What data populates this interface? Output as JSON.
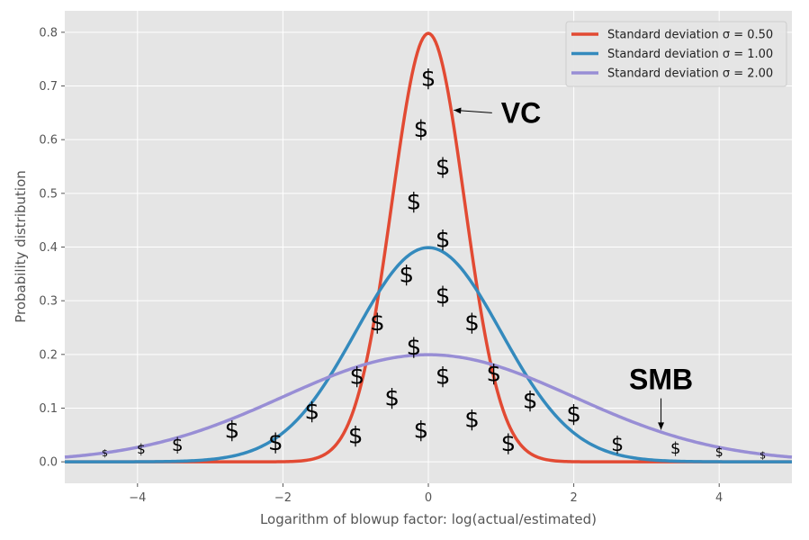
{
  "chart_data": {
    "type": "line",
    "xlabel": "Logarithm of blowup factor: log(actual/estimated)",
    "ylabel": "Probability distribution",
    "xlim": [
      -5,
      5
    ],
    "ylim": [
      -0.04,
      0.84
    ],
    "x_ticks": [
      -4,
      -2,
      0,
      2,
      4
    ],
    "x_tick_labels": [
      "−4",
      "−2",
      "0",
      "2",
      "4"
    ],
    "y_ticks": [
      0.0,
      0.1,
      0.2,
      0.3,
      0.4,
      0.5,
      0.6,
      0.7,
      0.8
    ],
    "y_tick_labels": [
      "0.0",
      "0.1",
      "0.2",
      "0.3",
      "0.4",
      "0.5",
      "0.6",
      "0.7",
      "0.8"
    ],
    "grid": true,
    "background": "#e5e5e5",
    "legend_position": "top-right",
    "series": [
      {
        "name": "Standard deviation σ = 0.50",
        "mean": 0,
        "sigma": 0.5,
        "color": "#e24a33"
      },
      {
        "name": "Standard deviation σ = 1.00",
        "mean": 0,
        "sigma": 1.0,
        "color": "#348abd"
      },
      {
        "name": "Standard deviation σ = 2.00",
        "mean": 0,
        "sigma": 2.0,
        "color": "#988ed5"
      }
    ],
    "dollar_symbol": "$",
    "dollar_markers": [
      {
        "x": -4.45,
        "y": 0.01,
        "size": 11
      },
      {
        "x": -3.95,
        "y": 0.015,
        "size": 15
      },
      {
        "x": -3.45,
        "y": 0.02,
        "size": 20
      },
      {
        "x": -2.7,
        "y": 0.045,
        "size": 26
      },
      {
        "x": -2.1,
        "y": 0.022,
        "size": 26
      },
      {
        "x": -1.6,
        "y": 0.08,
        "size": 26
      },
      {
        "x": -1.0,
        "y": 0.035,
        "size": 26
      },
      {
        "x": -0.98,
        "y": 0.145,
        "size": 26
      },
      {
        "x": -0.7,
        "y": 0.245,
        "size": 26
      },
      {
        "x": -0.5,
        "y": 0.105,
        "size": 26
      },
      {
        "x": -0.3,
        "y": 0.335,
        "size": 26
      },
      {
        "x": -0.2,
        "y": 0.2,
        "size": 26
      },
      {
        "x": -0.2,
        "y": 0.47,
        "size": 26
      },
      {
        "x": -0.1,
        "y": 0.605,
        "size": 26
      },
      {
        "x": -0.1,
        "y": 0.045,
        "size": 26
      },
      {
        "x": 0.0,
        "y": 0.7,
        "size": 26
      },
      {
        "x": 0.2,
        "y": 0.535,
        "size": 26
      },
      {
        "x": 0.2,
        "y": 0.4,
        "size": 26
      },
      {
        "x": 0.2,
        "y": 0.295,
        "size": 26
      },
      {
        "x": 0.2,
        "y": 0.145,
        "size": 26
      },
      {
        "x": 0.6,
        "y": 0.245,
        "size": 26
      },
      {
        "x": 0.6,
        "y": 0.065,
        "size": 26
      },
      {
        "x": 0.9,
        "y": 0.15,
        "size": 26
      },
      {
        "x": 1.1,
        "y": 0.02,
        "size": 26
      },
      {
        "x": 1.4,
        "y": 0.1,
        "size": 26
      },
      {
        "x": 2.0,
        "y": 0.075,
        "size": 26
      },
      {
        "x": 2.6,
        "y": 0.02,
        "size": 22
      },
      {
        "x": 3.4,
        "y": 0.015,
        "size": 18
      },
      {
        "x": 4.0,
        "y": 0.01,
        "size": 14
      },
      {
        "x": 4.6,
        "y": 0.006,
        "size": 11
      }
    ],
    "annotations": [
      {
        "text": "VC",
        "x": 1.0,
        "y": 0.65,
        "arrow_to_x": 0.35,
        "arrow_to_y": 0.655
      },
      {
        "text": "SMB",
        "x": 3.2,
        "y": 0.135,
        "arrow_to_x": 3.2,
        "arrow_to_y": 0.06
      }
    ]
  }
}
